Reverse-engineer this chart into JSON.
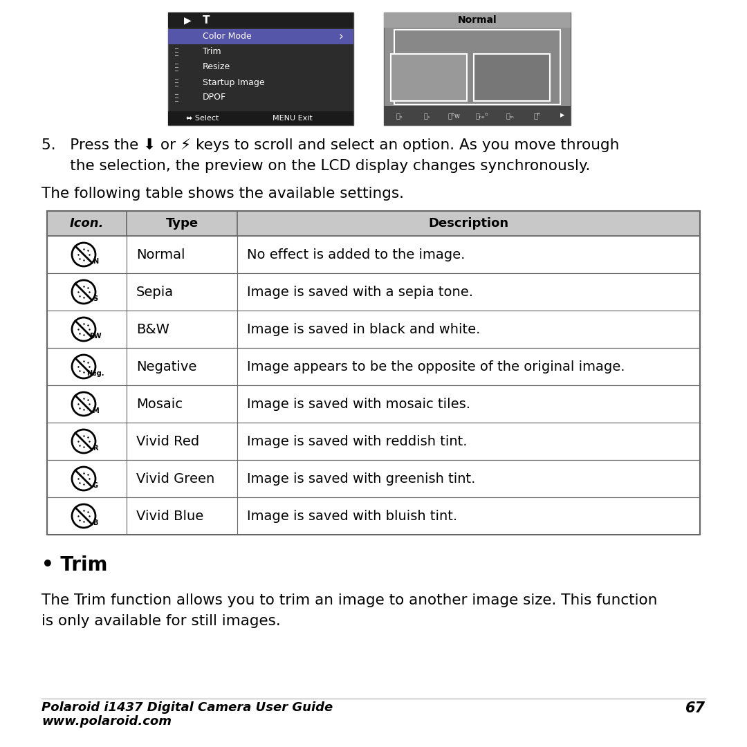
{
  "bg_color": "#ffffff",
  "table_header": [
    "Icon.",
    "Type",
    "Description"
  ],
  "table_rows": [
    [
      "N",
      "Normal",
      "No effect is added to the image."
    ],
    [
      "S",
      "Sepia",
      "Image is saved with a sepia tone."
    ],
    [
      "BW",
      "B&W",
      "Image is saved in black and white."
    ],
    [
      "Neg.",
      "Negative",
      "Image appears to be the opposite of the original image."
    ],
    [
      "M",
      "Mosaic",
      "Image is saved with mosaic tiles."
    ],
    [
      "R",
      "Vivid Red",
      "Image is saved with reddish tint."
    ],
    [
      "G",
      "Vivid Green",
      "Image is saved with greenish tint."
    ],
    [
      "B",
      "Vivid Blue",
      "Image is saved with bluish tint."
    ]
  ],
  "header_bg": "#c8c8c8",
  "border_color": "#666666",
  "step5_line1": "5.   Press the ⬇ or ⚡ keys to scroll and select an option. As you move through",
  "step5_line2": "      the selection, the preview on the LCD display changes synchronously.",
  "following_text": "The following table shows the available settings.",
  "bullet_trim": "• Trim",
  "trim_desc1": "The Trim function allows you to trim an image to another image size. This function",
  "trim_desc2": "is only available for still images.",
  "footer_guide": "Polaroid i1437 Digital Camera User Guide",
  "footer_web": "www.polaroid.com",
  "footer_page": "67",
  "footer_line_color": "#bbbbbb",
  "menu_items": [
    "Color Mode",
    "Trim",
    "Resize",
    "Startup Image",
    "DPOF"
  ]
}
